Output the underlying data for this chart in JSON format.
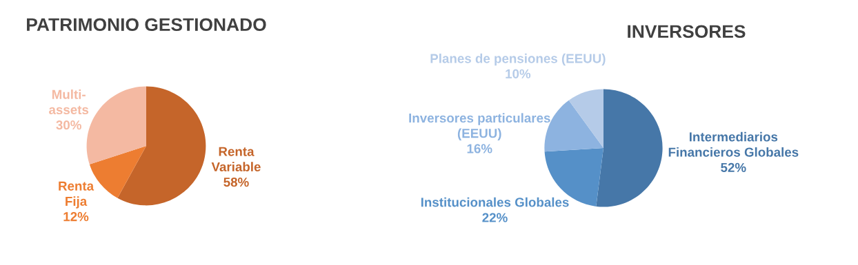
{
  "chart_data": [
    {
      "type": "pie",
      "title": "PATRIMONIO GESTIONADO",
      "categories": [
        "Renta\nVariable",
        "Renta\nFija",
        "Multi-\nassets"
      ],
      "values": [
        58,
        12,
        30
      ],
      "colors": [
        "#c5652a",
        "#ed7d31",
        "#f4b9a2"
      ],
      "value_labels": [
        "58%",
        "12%",
        "30%"
      ]
    },
    {
      "type": "pie",
      "title": "INVERSORES",
      "categories": [
        "Intermediarios\nFinancieros Globales",
        "Institucionales Globales",
        "Inversores particulares\n(EEUU)",
        "Planes de pensiones (EEUU)"
      ],
      "values": [
        52,
        22,
        16,
        10
      ],
      "colors": [
        "#4677a8",
        "#5590c8",
        "#8db3e0",
        "#b5cbe8"
      ],
      "value_labels": [
        "52%",
        "22%",
        "16%",
        "10%"
      ]
    }
  ]
}
